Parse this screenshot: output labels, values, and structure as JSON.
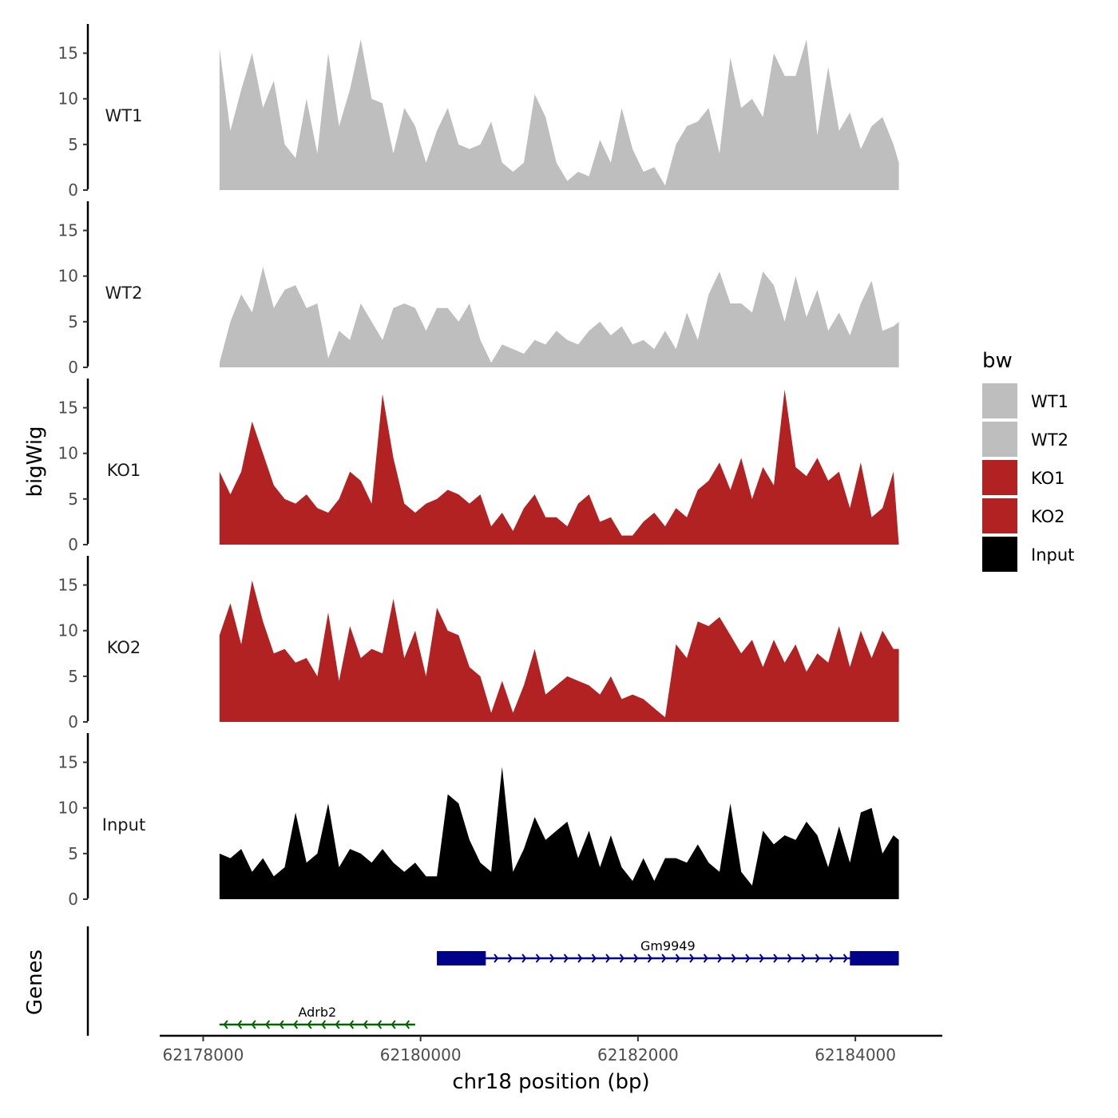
{
  "chart_data": {
    "type": "area",
    "title": "",
    "xlabel": "chr18 position (bp)",
    "ylabel": "bigWig",
    "genes_ylabel": "Genes",
    "xlim": [
      62177600,
      62184800
    ],
    "ylim": [
      0,
      17.5
    ],
    "x_ticks": [
      62178000,
      62180000,
      62182000,
      62184000
    ],
    "x_tick_labels": [
      "62178000",
      "62180000",
      "62182000",
      "62184000"
    ],
    "y_ticks": [
      0,
      5,
      10,
      15
    ],
    "y_tick_labels": [
      "0",
      "5",
      "10",
      "15"
    ],
    "legend": {
      "title": "bw",
      "position": "right",
      "entries": [
        {
          "name": "WT1",
          "color": "#bebebe"
        },
        {
          "name": "WT2",
          "color": "#bebebe"
        },
        {
          "name": "KO1",
          "color": "#b22222"
        },
        {
          "name": "KO2",
          "color": "#b22222"
        },
        {
          "name": "Input",
          "color": "#000000"
        }
      ]
    },
    "x": [
      62178150,
      62178250,
      62178350,
      62178450,
      62178550,
      62178650,
      62178750,
      62178850,
      62178950,
      62179050,
      62179150,
      62179250,
      62179350,
      62179450,
      62179550,
      62179650,
      62179750,
      62179850,
      62179950,
      62180050,
      62180150,
      62180250,
      62180350,
      62180450,
      62180550,
      62180650,
      62180750,
      62180850,
      62180950,
      62181050,
      62181150,
      62181250,
      62181350,
      62181450,
      62181550,
      62181650,
      62181750,
      62181850,
      62181950,
      62182050,
      62182150,
      62182250,
      62182350,
      62182450,
      62182550,
      62182650,
      62182750,
      62182850,
      62182950,
      62183050,
      62183150,
      62183250,
      62183350,
      62183450,
      62183550,
      62183650,
      62183750,
      62183850,
      62183950,
      62184050,
      62184150,
      62184250,
      62184350,
      62184400
    ],
    "series": [
      {
        "name": "WT1",
        "color": "#bebebe",
        "values": [
          15.5,
          6.5,
          11,
          15,
          9,
          12,
          5,
          3.5,
          10,
          4,
          15,
          7,
          11,
          16.5,
          10,
          9.5,
          4,
          9,
          7,
          3,
          6.5,
          9,
          5,
          4.5,
          5,
          7.5,
          3,
          2,
          3,
          10.5,
          8,
          3,
          1,
          2,
          1.5,
          5.5,
          3,
          9,
          4.5,
          2,
          2.5,
          0.5,
          5,
          7,
          7.5,
          9,
          4,
          14.5,
          9,
          10,
          8,
          15,
          12.5,
          12.5,
          16.5,
          6,
          13.5,
          6.5,
          8.5,
          4.5,
          7,
          8,
          5,
          3
        ]
      },
      {
        "name": "WT2",
        "color": "#bebebe",
        "values": [
          0.5,
          5,
          8,
          6,
          11,
          6.5,
          8.5,
          9,
          6.5,
          7,
          1,
          4,
          3,
          7,
          5,
          3,
          6.5,
          7,
          6.5,
          4,
          6.5,
          6.5,
          5,
          7,
          3,
          0.5,
          2.5,
          2,
          1.5,
          3,
          2.5,
          4,
          3,
          2.5,
          4,
          5,
          3.5,
          4.5,
          2.5,
          3,
          2,
          4,
          2,
          6,
          3,
          8,
          10.5,
          7,
          7,
          6,
          10.5,
          9,
          5,
          10,
          5.5,
          8.5,
          4,
          6,
          3.5,
          7,
          9.5,
          4,
          4.5,
          5
        ]
      },
      {
        "name": "KO1",
        "color": "#b22222",
        "values": [
          8,
          5.5,
          8,
          13.5,
          10,
          6.5,
          5,
          4.5,
          5.5,
          4,
          3.5,
          5,
          8,
          7,
          4.5,
          16.5,
          9.5,
          4.5,
          3.5,
          4.5,
          5,
          6,
          5.5,
          4.5,
          5.5,
          2,
          3.5,
          1.5,
          4,
          5.5,
          3,
          3,
          2,
          4.5,
          5.5,
          2.5,
          3,
          1,
          1,
          2.5,
          3.5,
          2,
          4,
          3,
          6,
          7,
          9,
          6,
          9.5,
          5,
          8.5,
          6.5,
          17,
          8.5,
          7.5,
          9.5,
          7,
          8,
          4,
          9,
          3,
          4,
          8,
          0
        ]
      },
      {
        "name": "KO2",
        "color": "#b22222",
        "values": [
          9.5,
          13,
          8.5,
          15.5,
          11,
          7.5,
          8,
          6.5,
          7,
          5,
          12,
          4.5,
          10.5,
          7,
          8,
          7.5,
          13.5,
          7,
          10,
          5,
          12.5,
          10,
          9.5,
          6,
          5,
          1,
          4.5,
          1,
          4,
          8,
          3,
          4,
          5,
          4.5,
          4,
          3,
          5,
          2.5,
          3,
          2.5,
          1.5,
          0.5,
          8.5,
          7,
          11,
          10.5,
          11.5,
          9.5,
          7.5,
          9,
          6,
          9,
          6.5,
          8.5,
          5.5,
          7.5,
          6.5,
          10.5,
          6,
          10,
          7,
          10,
          8,
          8
        ]
      },
      {
        "name": "Input",
        "color": "#000000",
        "values": [
          5,
          4.5,
          5.5,
          3,
          4.5,
          2.5,
          3.5,
          9.5,
          4,
          5,
          10.5,
          3.5,
          5.5,
          5,
          4,
          5.5,
          4,
          3,
          4,
          2.5,
          2.5,
          11.5,
          10.5,
          6.5,
          4,
          3,
          14.5,
          3,
          5.5,
          9,
          6.5,
          7.5,
          8.5,
          4.5,
          7.5,
          3.5,
          7,
          3.5,
          2,
          4.5,
          2,
          4.5,
          4.5,
          4,
          6,
          4,
          3,
          10.5,
          3,
          1.5,
          7.5,
          6,
          7,
          6.5,
          8.5,
          7,
          3.5,
          8,
          4,
          9.5,
          10,
          5,
          7,
          6.5
        ]
      }
    ],
    "genes": [
      {
        "name": "Gm9949",
        "color": "#00008b",
        "strand": "+",
        "start": 62180150,
        "end": 62184400,
        "exons": [
          [
            62180150,
            62180600
          ],
          [
            62183950,
            62184400
          ]
        ]
      },
      {
        "name": "Adrb2",
        "color": "#006400",
        "strand": "-",
        "start": 62178150,
        "end": 62179950,
        "exons": []
      }
    ]
  }
}
